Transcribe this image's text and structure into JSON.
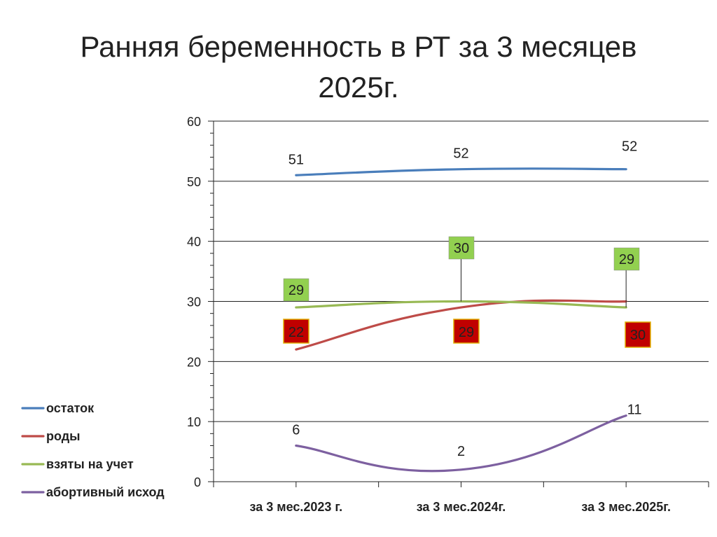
{
  "title_line1": "Ранняя беременность в РТ за  3 месяцев",
  "title_line2": "2025г.",
  "chart_data": {
    "type": "line",
    "title": "Ранняя беременность в РТ за  3 месяцев 2025г.",
    "categories": [
      "за 3 мес.2023 г.",
      "за 3 мес.2024г.",
      "за 3 мес.2025г."
    ],
    "ylim": [
      0,
      60
    ],
    "yticks": [
      0,
      10,
      20,
      30,
      40,
      50,
      60
    ],
    "grid": true,
    "legend_position": "left",
    "series": [
      {
        "name": "остаток",
        "values": [
          51,
          52,
          52
        ],
        "color": "#4a7ebb",
        "label_style": "plain"
      },
      {
        "name": "роды",
        "values": [
          22,
          29,
          30
        ],
        "color": "#be4b48",
        "label_style": "boxed-red"
      },
      {
        "name": "взяты на учет",
        "values": [
          29,
          30,
          29
        ],
        "color": "#98b954",
        "label_style": "boxed-green"
      },
      {
        "name": "абортивный исход",
        "values": [
          6,
          2,
          11
        ],
        "color": "#7d60a0",
        "label_style": "plain"
      }
    ]
  }
}
